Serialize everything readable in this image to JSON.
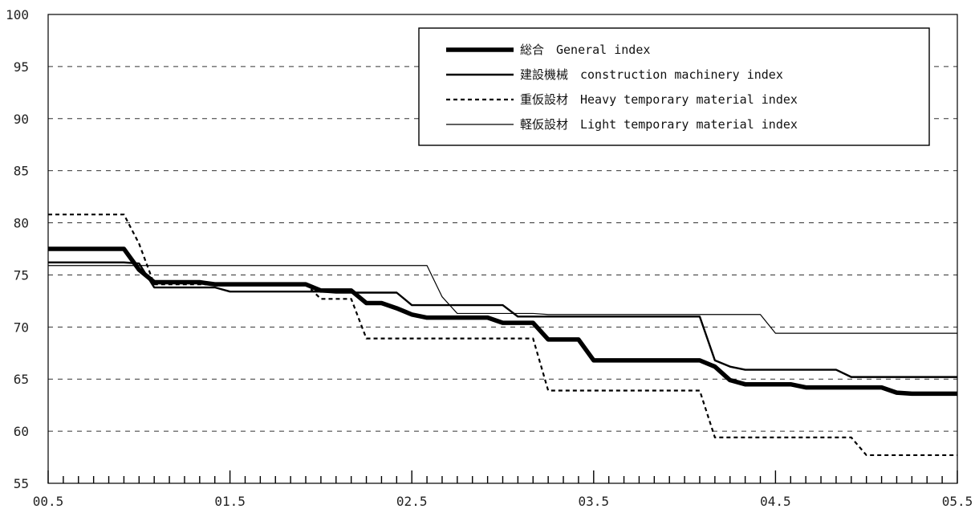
{
  "chart_data": {
    "type": "line",
    "title": "",
    "xlabel": "",
    "ylabel": "",
    "ylim": [
      55,
      100
    ],
    "yticks": [
      55,
      60,
      65,
      70,
      75,
      80,
      85,
      90,
      95,
      100
    ],
    "xtick_labels": [
      "00.5",
      "01.5",
      "02.5",
      "03.5",
      "04.5",
      "05.5"
    ],
    "grid": "horizontal-dashed",
    "legend_position": "top-right",
    "x_months": [
      "2000-05",
      "2000-06",
      "2000-07",
      "2000-08",
      "2000-09",
      "2000-10",
      "2000-11",
      "2000-12",
      "2001-01",
      "2001-02",
      "2001-03",
      "2001-04",
      "2001-05",
      "2001-06",
      "2001-07",
      "2001-08",
      "2001-09",
      "2001-10",
      "2001-11",
      "2001-12",
      "2002-01",
      "2002-02",
      "2002-03",
      "2002-04",
      "2002-05",
      "2002-06",
      "2002-07",
      "2002-08",
      "2002-09",
      "2002-10",
      "2002-11",
      "2002-12",
      "2003-01",
      "2003-02",
      "2003-03",
      "2003-04",
      "2003-05",
      "2003-06",
      "2003-07",
      "2003-08",
      "2003-09",
      "2003-10",
      "2003-11",
      "2003-12",
      "2004-01",
      "2004-02",
      "2004-03",
      "2004-04",
      "2004-05",
      "2004-06",
      "2004-07",
      "2004-08",
      "2004-09",
      "2004-10",
      "2004-11",
      "2004-12",
      "2005-01",
      "2005-02",
      "2005-03",
      "2005-04",
      "2005-05"
    ],
    "series": [
      {
        "name": "総合　General index",
        "style": "thick",
        "values": [
          77.5,
          77.5,
          77.5,
          77.5,
          77.5,
          77.5,
          75.5,
          74.3,
          74.3,
          74.3,
          74.3,
          74.1,
          74.1,
          74.1,
          74.1,
          74.1,
          74.1,
          74.1,
          73.5,
          73.5,
          73.5,
          72.3,
          72.3,
          71.8,
          71.2,
          70.9,
          70.9,
          70.9,
          70.9,
          70.9,
          70.4,
          70.4,
          70.4,
          68.8,
          68.8,
          68.8,
          66.8,
          66.8,
          66.8,
          66.8,
          66.8,
          66.8,
          66.8,
          66.8,
          66.2,
          64.9,
          64.5,
          64.5,
          64.5,
          64.5,
          64.2,
          64.2,
          64.2,
          64.2,
          64.2,
          64.2,
          63.7,
          63.6,
          63.6,
          63.6,
          63.6
        ]
      },
      {
        "name": "建設機械　construction machinery index",
        "style": "medium",
        "values": [
          76.2,
          76.2,
          76.2,
          76.2,
          76.2,
          76.2,
          76.1,
          73.8,
          73.8,
          73.8,
          73.8,
          73.8,
          73.4,
          73.4,
          73.4,
          73.4,
          73.4,
          73.4,
          73.4,
          73.3,
          73.3,
          73.3,
          73.3,
          73.3,
          72.1,
          72.1,
          72.1,
          72.1,
          72.1,
          72.1,
          72.1,
          71.0,
          71.0,
          71.0,
          71.0,
          71.0,
          71.0,
          71.0,
          71.0,
          71.0,
          71.0,
          71.0,
          71.0,
          71.0,
          66.8,
          66.2,
          65.9,
          65.9,
          65.9,
          65.9,
          65.9,
          65.9,
          65.9,
          65.2,
          65.2,
          65.2,
          65.2,
          65.2,
          65.2,
          65.2,
          65.2
        ]
      },
      {
        "name": "重仮設材　Heavy temporary material index",
        "style": "dotted",
        "values": [
          80.8,
          80.8,
          80.8,
          80.8,
          80.8,
          80.8,
          78.0,
          74.1,
          74.1,
          74.1,
          74.1,
          74.1,
          74.1,
          74.1,
          74.1,
          74.1,
          74.1,
          74.1,
          72.7,
          72.7,
          72.7,
          68.9,
          68.9,
          68.9,
          68.9,
          68.9,
          68.9,
          68.9,
          68.9,
          68.9,
          68.9,
          68.9,
          68.9,
          63.9,
          63.9,
          63.9,
          63.9,
          63.9,
          63.9,
          63.9,
          63.9,
          63.9,
          63.9,
          63.9,
          59.4,
          59.4,
          59.4,
          59.4,
          59.4,
          59.4,
          59.4,
          59.4,
          59.4,
          59.4,
          57.7,
          57.7,
          57.7,
          57.7,
          57.7,
          57.7,
          57.7
        ]
      },
      {
        "name": "軽仮設材　Light temporary material index",
        "style": "thin",
        "values": [
          75.9,
          75.9,
          75.9,
          75.9,
          75.9,
          75.9,
          75.9,
          75.9,
          75.9,
          75.9,
          75.9,
          75.9,
          75.9,
          75.9,
          75.9,
          75.9,
          75.9,
          75.9,
          75.9,
          75.9,
          75.9,
          75.9,
          75.9,
          75.9,
          75.9,
          75.9,
          72.9,
          71.3,
          71.3,
          71.3,
          71.3,
          71.3,
          71.3,
          71.2,
          71.2,
          71.2,
          71.2,
          71.2,
          71.2,
          71.2,
          71.2,
          71.2,
          71.2,
          71.2,
          71.2,
          71.2,
          71.2,
          71.2,
          69.4,
          69.4,
          69.4,
          69.4,
          69.4,
          69.4,
          69.4,
          69.4,
          69.4,
          69.4,
          69.4,
          69.4,
          69.4
        ]
      }
    ]
  }
}
